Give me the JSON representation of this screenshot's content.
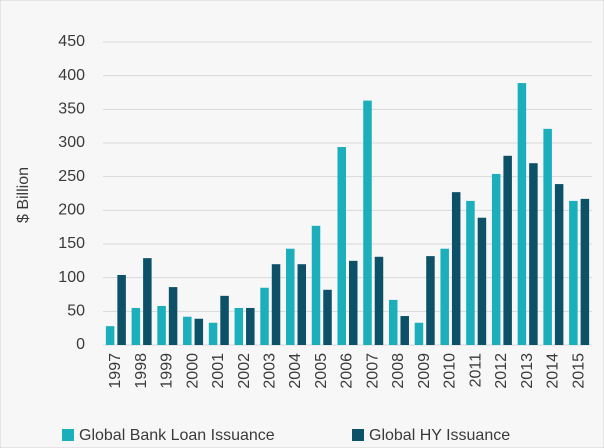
{
  "chart_data": {
    "type": "bar",
    "y_label": "$ Billion",
    "categories": [
      "1997",
      "1998",
      "1999",
      "2000",
      "2001",
      "2002",
      "2003",
      "2004",
      "2005",
      "2006",
      "2007",
      "2008",
      "2009",
      "2010",
      "2011",
      "2012",
      "2013",
      "2014",
      "2015"
    ],
    "series": [
      {
        "name": "Global Bank Loan Issuance",
        "color": "#1aafbb",
        "values": [
          28,
          55,
          58,
          42,
          33,
          55,
          85,
          143,
          177,
          294,
          363,
          67,
          33,
          143,
          214,
          254,
          389,
          321,
          214
        ]
      },
      {
        "name": "Global HY Issuance",
        "color": "#0d5168",
        "values": [
          104,
          129,
          86,
          39,
          73,
          55,
          120,
          120,
          82,
          125,
          131,
          43,
          132,
          227,
          189,
          281,
          270,
          239,
          217
        ]
      }
    ],
    "ylim": [
      0,
      450
    ],
    "yticks": [
      0,
      50,
      100,
      150,
      200,
      250,
      300,
      350,
      400,
      450
    ],
    "grid": true,
    "legend": "bottom"
  }
}
